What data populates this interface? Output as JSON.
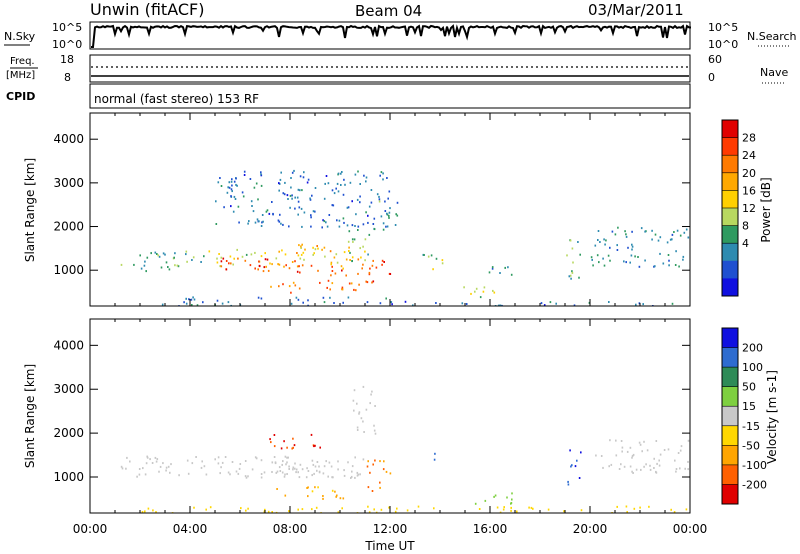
{
  "header": {
    "station": "Unwin (fitACF)",
    "beam": "Beam 04",
    "date": "03/Mar/2011"
  },
  "summary": {
    "nsky_label": "N.Sky",
    "nsky_ticks": [
      "10^5",
      "10^0"
    ],
    "nsearch_label": "N.Search",
    "freq_label_1": "Freq.",
    "freq_label_2": "[MHz]",
    "freq_ticks": [
      "18",
      "8"
    ],
    "nave_ticks": [
      "60",
      "0"
    ],
    "nave_label": "Nave",
    "cpid_label": "CPID",
    "cpid_text": "normal (fast stereo) 153 RF"
  },
  "chart_data": [
    {
      "type": "heatmap",
      "name": "power",
      "xlabel": "Time UT",
      "ylabel": "Slant Range [km]",
      "ylim": [
        180,
        4600
      ],
      "yticks": [
        "1000",
        "2000",
        "3000",
        "4000"
      ],
      "xticks": [
        "00:00",
        "04:00",
        "08:00",
        "12:00",
        "16:00",
        "20:00",
        "00:00"
      ],
      "colorbar": {
        "label": "Power [dB]",
        "ticks": [
          "28",
          "24",
          "20",
          "16",
          "12",
          "8",
          "4"
        ],
        "colors": [
          "#e00000",
          "#ff3a00",
          "#ff7a00",
          "#ffa800",
          "#ffd000",
          "#b8d860",
          "#2f9a60",
          "#2e8bb0",
          "#1f50d0",
          "#1010e0"
        ]
      },
      "regions": [
        {
          "t0": 1.2,
          "t1": 4.5,
          "r0": 1000,
          "r1": 1450,
          "level": 10
        },
        {
          "t0": 4.5,
          "t1": 7.0,
          "r0": 1100,
          "r1": 1500,
          "level": 14
        },
        {
          "t0": 7.0,
          "t1": 11.0,
          "r0": 1050,
          "r1": 1550,
          "level": 18
        },
        {
          "t0": 5.2,
          "t1": 8.4,
          "r0": 1000,
          "r1": 1300,
          "level": 26
        },
        {
          "t0": 7.5,
          "t1": 11.3,
          "r0": 900,
          "r1": 1150,
          "level": 25
        },
        {
          "t0": 7.2,
          "t1": 10.8,
          "r0": 500,
          "r1": 800,
          "level": 24
        },
        {
          "t0": 8.0,
          "t1": 9.8,
          "r0": 1400,
          "r1": 1750,
          "level": 20
        },
        {
          "t0": 11.0,
          "t1": 12.0,
          "r0": 700,
          "r1": 1300,
          "level": 27
        },
        {
          "t0": 10.3,
          "t1": 11.2,
          "r0": 1200,
          "r1": 2000,
          "level": 12
        },
        {
          "t0": 11.3,
          "t1": 12.3,
          "r0": 1800,
          "r1": 2600,
          "level": 8
        },
        {
          "t0": 14.8,
          "t1": 16.5,
          "r0": 400,
          "r1": 650,
          "level": 14
        },
        {
          "t0": 13.3,
          "t1": 14.2,
          "r0": 1000,
          "r1": 1400,
          "level": 12
        },
        {
          "t0": 15.5,
          "t1": 17.5,
          "r0": 900,
          "r1": 1100,
          "level": 8
        },
        {
          "t0": 19.0,
          "t1": 19.6,
          "r0": 800,
          "r1": 1800,
          "level": 10
        },
        {
          "t0": 20.0,
          "t1": 24.0,
          "r0": 1100,
          "r1": 2000,
          "level": 7
        },
        {
          "t0": 2.5,
          "t1": 12.0,
          "r0": 200,
          "r1": 400,
          "level": 6
        },
        {
          "t0": 12.0,
          "t1": 24.0,
          "r0": 200,
          "r1": 300,
          "level": 5
        },
        {
          "t0": 5.0,
          "t1": 12.0,
          "r0": 2000,
          "r1": 3300,
          "level": 5
        }
      ]
    },
    {
      "type": "heatmap",
      "name": "velocity",
      "xlabel": "Time UT",
      "ylabel": "Slant Range [km]",
      "ylim": [
        180,
        4600
      ],
      "yticks": [
        "1000",
        "2000",
        "3000",
        "4000"
      ],
      "xticks": [
        "00:00",
        "04:00",
        "08:00",
        "12:00",
        "16:00",
        "20:00",
        "00:00"
      ],
      "colorbar": {
        "label": "Velocity [m s-1]",
        "ticks": [
          "200",
          "100",
          "50",
          "15",
          "-15",
          "-50",
          "-100",
          "-200"
        ],
        "colors": [
          "#1010e0",
          "#2e6cd0",
          "#2e8b57",
          "#7ed040",
          "#c8c8c8",
          "#ffd700",
          "#ffa500",
          "#ff6000",
          "#e00000"
        ]
      },
      "regions": [
        {
          "t0": 1.2,
          "t1": 11.0,
          "r0": 1000,
          "r1": 1500,
          "level": 0
        },
        {
          "t0": 7.0,
          "t1": 8.2,
          "r0": 1600,
          "r1": 2000,
          "level": -200
        },
        {
          "t0": 8.7,
          "t1": 9.5,
          "r0": 1650,
          "r1": 2000,
          "level": -200
        },
        {
          "t0": 7.0,
          "t1": 10.5,
          "r0": 1000,
          "r1": 1400,
          "level": 0
        },
        {
          "t0": 7.2,
          "t1": 10.3,
          "r0": 500,
          "r1": 800,
          "level": -60
        },
        {
          "t0": 11.0,
          "t1": 12.0,
          "r0": 700,
          "r1": 1400,
          "level": -100
        },
        {
          "t0": 13.6,
          "t1": 13.9,
          "r0": 1300,
          "r1": 1700,
          "level": 180
        },
        {
          "t0": 19.0,
          "t1": 19.6,
          "r0": 800,
          "r1": 1700,
          "level": 200
        },
        {
          "t0": 15.3,
          "t1": 17.0,
          "r0": 400,
          "r1": 650,
          "level": 40
        },
        {
          "t0": 20.0,
          "t1": 24.0,
          "r0": 1100,
          "r1": 1900,
          "level": 0
        },
        {
          "t0": 2.0,
          "t1": 24.0,
          "r0": 200,
          "r1": 350,
          "level": -30
        },
        {
          "t0": 10.5,
          "t1": 11.5,
          "r0": 2000,
          "r1": 3100,
          "level": 0
        }
      ]
    }
  ]
}
